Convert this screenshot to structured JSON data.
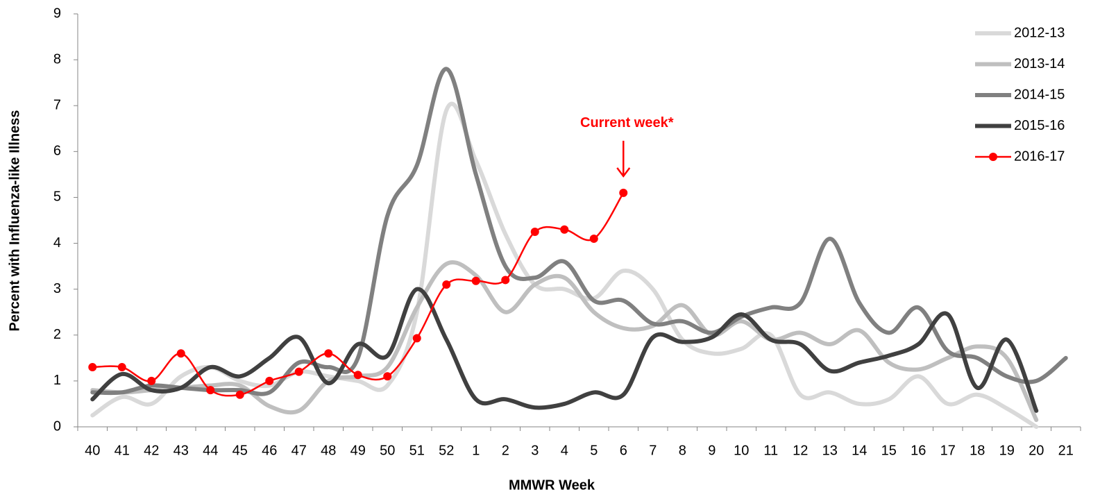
{
  "chart_data": {
    "type": "line",
    "x_label": "MMWR Week",
    "y_label": "Percent with Influenza-like Illness",
    "annotation": "Current week*",
    "annotation_color": "#ff0000",
    "categories": [
      "40",
      "41",
      "42",
      "43",
      "44",
      "45",
      "46",
      "47",
      "48",
      "49",
      "50",
      "51",
      "52",
      "1",
      "2",
      "3",
      "4",
      "5",
      "6",
      "7",
      "8",
      "9",
      "10",
      "11",
      "12",
      "13",
      "14",
      "15",
      "16",
      "17",
      "18",
      "19",
      "20",
      "21"
    ],
    "ylim": [
      0,
      9
    ],
    "yticks": [
      0,
      1,
      2,
      3,
      4,
      5,
      6,
      7,
      8,
      9
    ],
    "grid": false,
    "legend": "top-right",
    "series": [
      {
        "name": "2012-13",
        "color": "#d9d9d9",
        "values": [
          0.25,
          0.65,
          0.5,
          1.1,
          1.3,
          1.0,
          0.9,
          1.2,
          1.1,
          1.0,
          0.9,
          2.5,
          6.9,
          5.8,
          4.2,
          3.1,
          3.0,
          2.8,
          3.4,
          3.0,
          1.9,
          1.6,
          1.7,
          2.0,
          0.7,
          0.75,
          0.5,
          0.6,
          1.1,
          0.5,
          0.7,
          0.4,
          0.0,
          null
        ]
      },
      {
        "name": "2013-14",
        "color": "#bfbfbf",
        "values": [
          0.8,
          0.75,
          0.8,
          0.85,
          0.9,
          0.9,
          0.45,
          0.35,
          1.0,
          1.1,
          1.3,
          2.6,
          3.55,
          3.3,
          2.5,
          3.1,
          3.25,
          2.5,
          2.15,
          2.2,
          2.65,
          2.0,
          2.3,
          1.9,
          2.05,
          1.8,
          2.1,
          1.4,
          1.25,
          1.5,
          1.75,
          1.5,
          0.15,
          null
        ]
      },
      {
        "name": "2014-15",
        "color": "#808080",
        "values": [
          0.75,
          0.75,
          0.9,
          0.85,
          0.8,
          0.8,
          0.75,
          1.4,
          1.3,
          1.5,
          4.6,
          5.7,
          7.8,
          5.5,
          3.5,
          3.25,
          3.6,
          2.75,
          2.75,
          2.25,
          2.3,
          2.05,
          2.4,
          2.6,
          2.7,
          4.1,
          2.7,
          2.05,
          2.6,
          1.65,
          1.5,
          1.1,
          1.0,
          1.5
        ]
      },
      {
        "name": "2015-16",
        "color": "#404040",
        "values": [
          0.6,
          1.15,
          0.8,
          0.85,
          1.3,
          1.1,
          1.5,
          1.95,
          0.95,
          1.8,
          1.55,
          3.0,
          1.9,
          0.6,
          0.6,
          0.42,
          0.5,
          0.75,
          0.7,
          1.95,
          1.85,
          1.95,
          2.45,
          1.9,
          1.8,
          1.22,
          1.4,
          1.55,
          1.8,
          2.45,
          0.85,
          1.9,
          0.35,
          null
        ]
      },
      {
        "name": "2016-17",
        "color": "#ff0000",
        "markers": true,
        "values": [
          1.3,
          1.3,
          1.0,
          1.6,
          0.8,
          0.7,
          1.0,
          1.2,
          1.6,
          1.13,
          1.1,
          1.93,
          3.1,
          3.18,
          3.2,
          4.25,
          4.3,
          4.1,
          5.1,
          null,
          null,
          null,
          null,
          null,
          null,
          null,
          null,
          null,
          null,
          null,
          null,
          null,
          null,
          null
        ]
      }
    ]
  }
}
